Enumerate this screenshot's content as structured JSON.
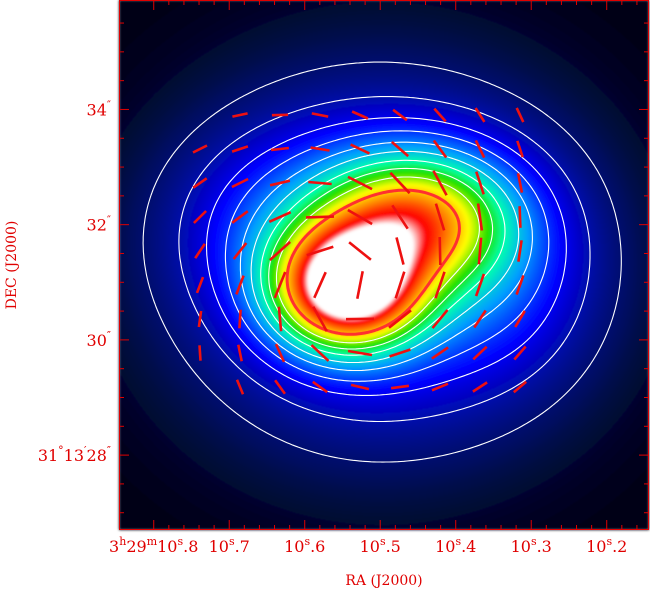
{
  "chart_data": {
    "type": "heatmap",
    "xlabel": "RA (J2000)",
    "ylabel": "DEC (J2000)",
    "x_ticks": [
      {
        "ra_s": 10.8,
        "main": "3",
        "sup1": "h",
        "mid": "29",
        "sup2": "m",
        "tail": "10",
        "sup3": "s",
        "end": ".8"
      },
      {
        "ra_s": 10.7,
        "main": "10",
        "sup1": "s",
        "mid": ".7"
      },
      {
        "ra_s": 10.6,
        "main": "10",
        "sup1": "s",
        "mid": ".6"
      },
      {
        "ra_s": 10.5,
        "main": "10",
        "sup1": "s",
        "mid": ".5"
      },
      {
        "ra_s": 10.4,
        "main": "10",
        "sup1": "s",
        "mid": ".4"
      },
      {
        "ra_s": 10.3,
        "main": "10",
        "sup1": "s",
        "mid": ".3"
      },
      {
        "ra_s": 10.2,
        "main": "10",
        "sup1": "s",
        "mid": ".2"
      }
    ],
    "y_ticks": [
      {
        "dec_arcsec": 34,
        "main": "34",
        "sup1": "″"
      },
      {
        "dec_arcsec": 32,
        "main": "32",
        "sup1": "″"
      },
      {
        "dec_arcsec": 30,
        "main": "30",
        "sup1": "″"
      },
      {
        "dec_arcsec": 28,
        "main": "31",
        "sup1": "°",
        "mid": "13",
        "sup2": "′",
        "tail": "28",
        "sup3": "″"
      }
    ],
    "x_range_ra_s": [
      10.846,
      10.144
    ],
    "y_range_dec_arcsec": [
      26.7,
      35.9
    ],
    "colormap": [
      "#000010",
      "#001060",
      "#0000ff",
      "#00a0ff",
      "#00ffb0",
      "#20e000",
      "#ffff00",
      "#ff8000",
      "#ff0000",
      "#ffffff"
    ],
    "peaks": [
      {
        "name": "primary",
        "ra_s": 10.543,
        "dec_arcsec": 30.92,
        "level": 1.0
      },
      {
        "name": "secondary",
        "ra_s": 10.455,
        "dec_arcsec": 32.1,
        "level": 0.58
      }
    ],
    "contour_levels": [
      0.05,
      0.1,
      0.16,
      0.22,
      0.29,
      0.36,
      0.44,
      0.52,
      0.61,
      0.75
    ],
    "peak_contour_color": "#ff3030",
    "polarization_vectors_count": 72,
    "vector_color": "#ee1010",
    "frame_color": "#e00000",
    "grid": false
  }
}
